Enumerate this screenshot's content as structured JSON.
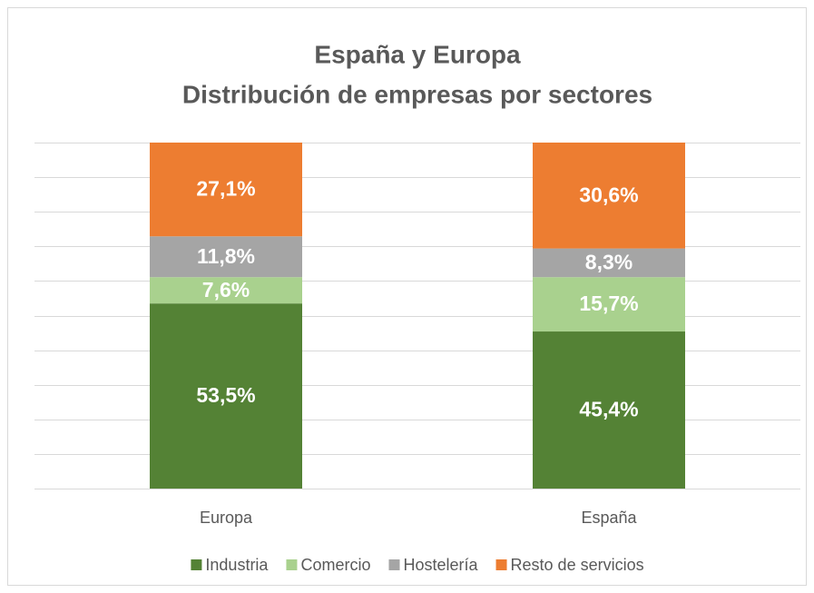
{
  "chart_data": {
    "type": "bar",
    "stacked": true,
    "title": [
      "España y Europa",
      "Distribución de empresas por sectores"
    ],
    "categories": [
      "Europa",
      "España"
    ],
    "series": [
      {
        "name": "Industria",
        "color": "#548235",
        "values": [
          53.5,
          45.4
        ],
        "value_labels": [
          "53,5%",
          "45,4%"
        ]
      },
      {
        "name": "Comercio",
        "color": "#a9d18e",
        "values": [
          7.6,
          15.7
        ],
        "value_labels": [
          "7,6%",
          "15,7%"
        ]
      },
      {
        "name": "Hostelería",
        "color": "#a5a5a5",
        "values": [
          11.8,
          8.3
        ],
        "value_labels": [
          "11,8%",
          "8,3%"
        ]
      },
      {
        "name": "Resto de servicios",
        "color": "#ed7d31",
        "values": [
          27.1,
          30.6
        ],
        "value_labels": [
          "27,1%",
          "30,6%"
        ]
      }
    ],
    "ylim": [
      0,
      100
    ],
    "yticks": [
      0,
      10,
      20,
      30,
      40,
      50,
      60,
      70,
      80,
      90,
      100
    ],
    "grid": true,
    "legend": "bottom"
  }
}
